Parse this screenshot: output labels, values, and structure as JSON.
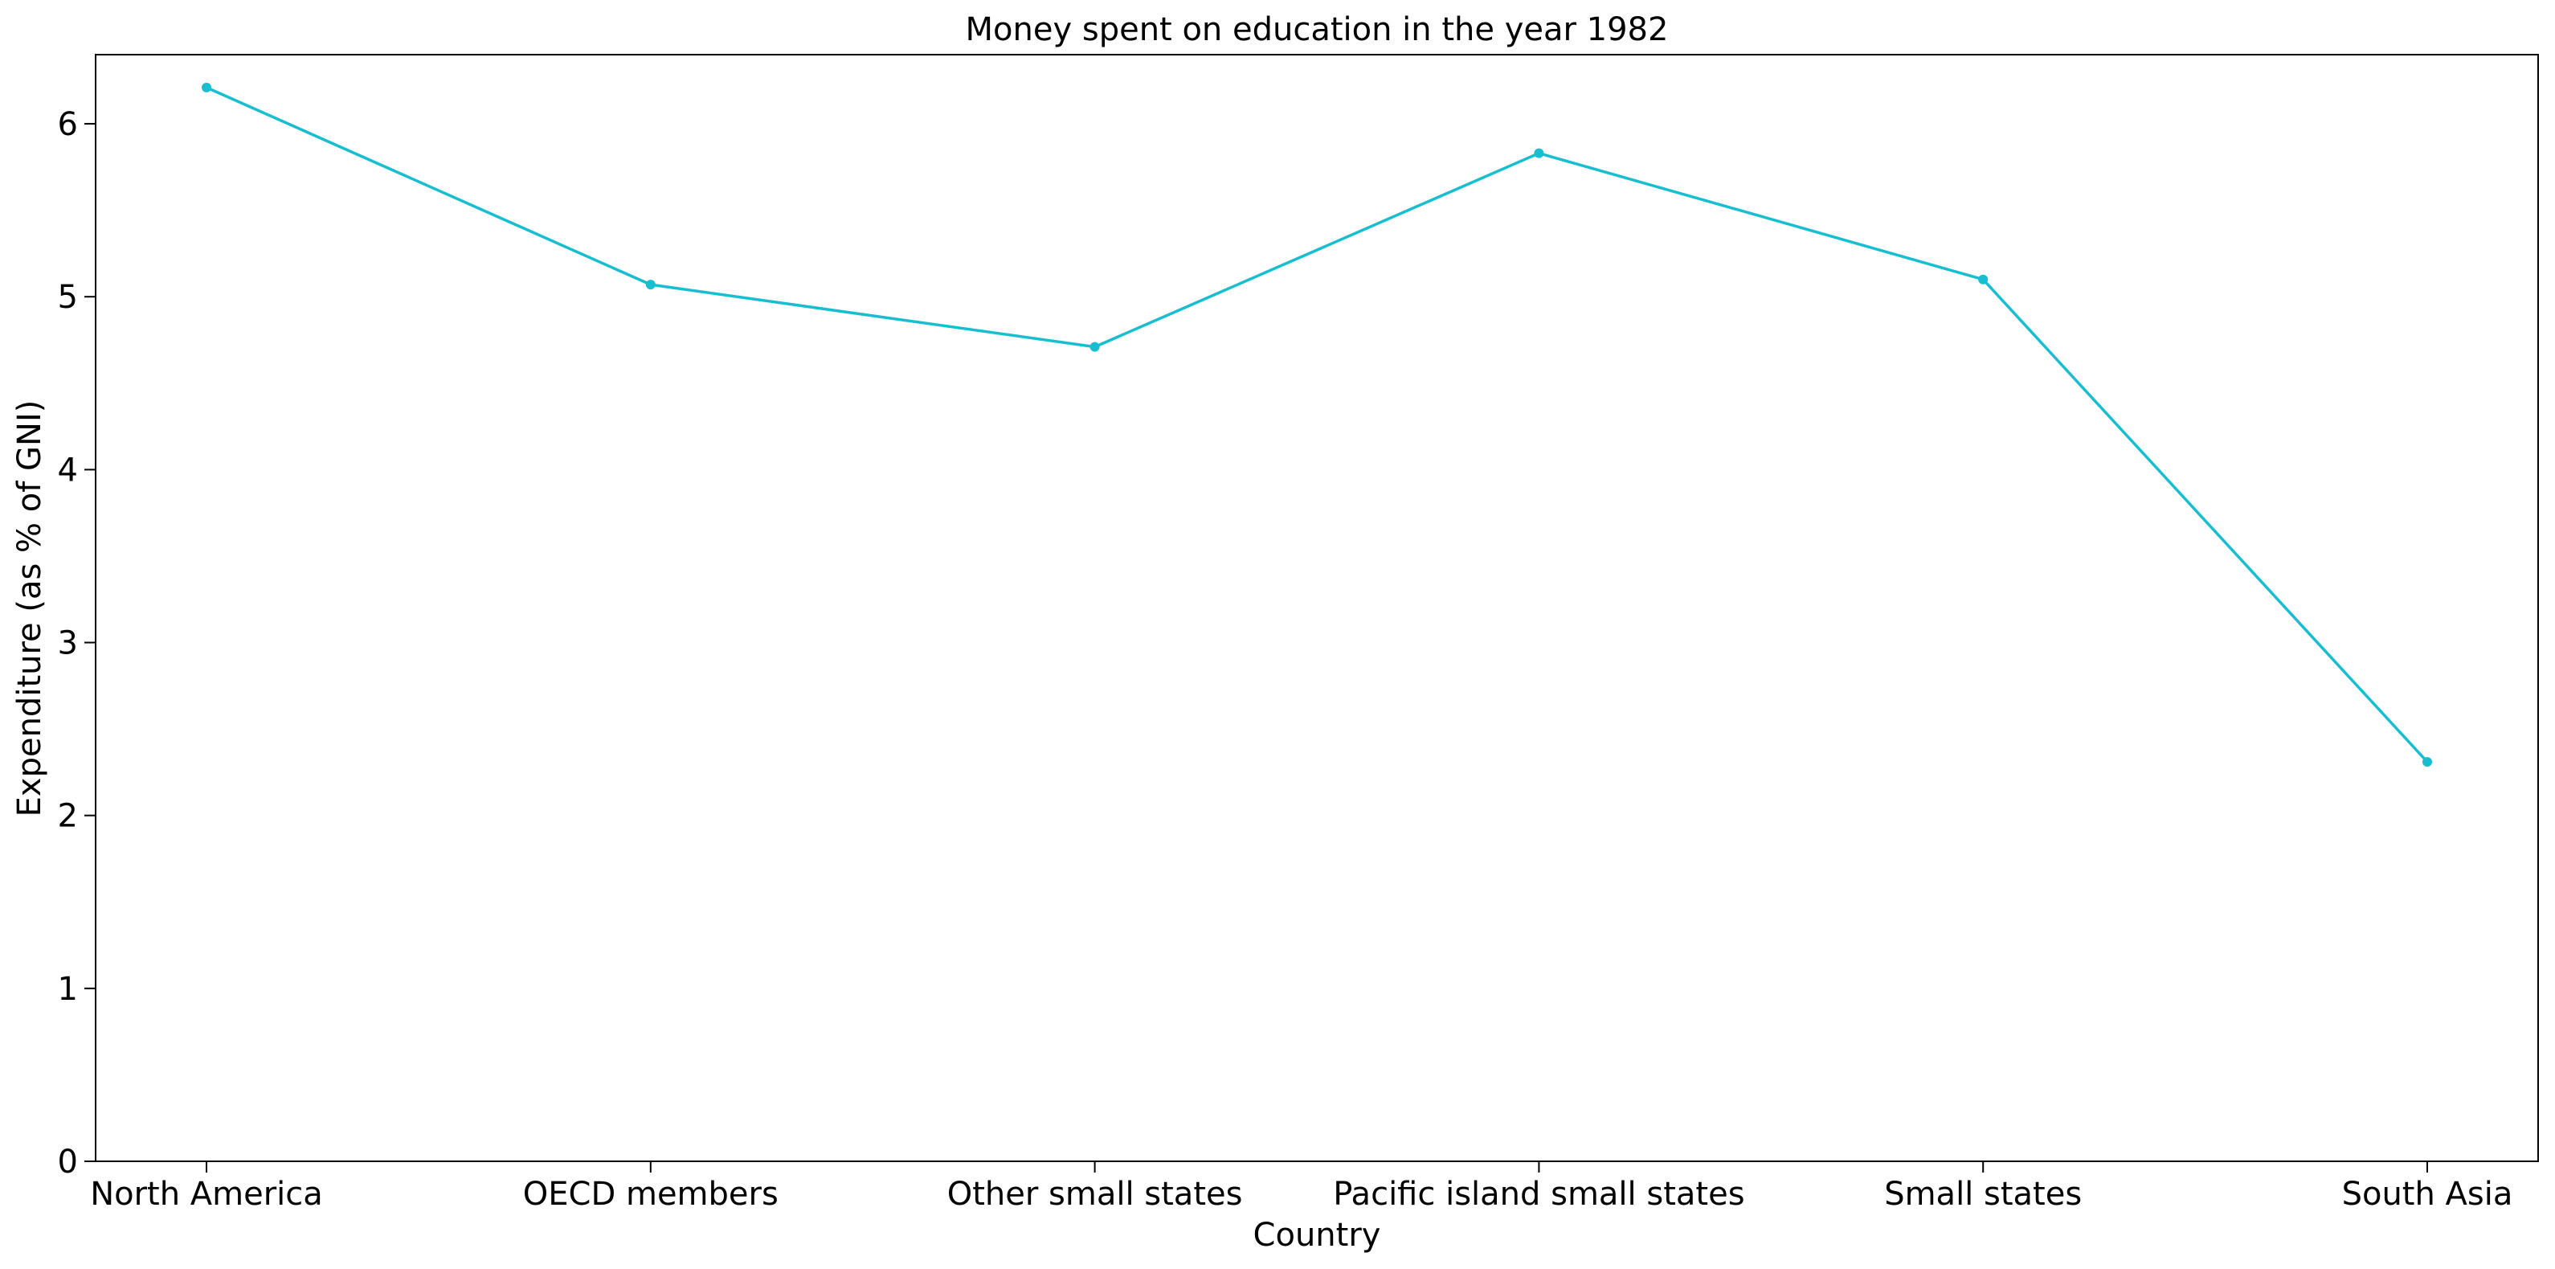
{
  "chart_data": {
    "type": "line",
    "title": "Money spent on education in the year 1982",
    "xlabel": "Country",
    "ylabel": "Expenditure (as % of GNI)",
    "categories": [
      "North America",
      "OECD members",
      "Other small states",
      "Pacific island small states",
      "Small states",
      "South Asia"
    ],
    "series": [
      {
        "values": [
          6.21,
          5.07,
          4.71,
          5.83,
          5.1,
          2.31
        ],
        "color": "#17becf",
        "marker": "circle"
      }
    ],
    "ylim": [
      0,
      6.4
    ],
    "yticks": [
      0,
      1,
      2,
      3,
      4,
      5,
      6
    ],
    "grid": false,
    "legend": "none"
  }
}
